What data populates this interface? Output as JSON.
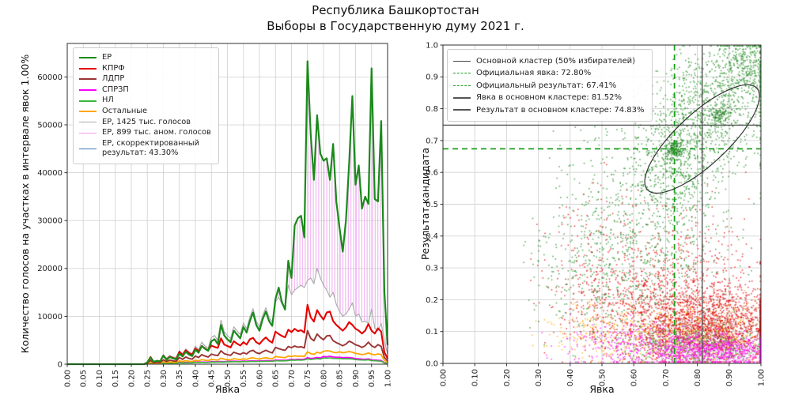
{
  "title": {
    "line1": "Республика Башкортостан",
    "line2": "Выборы в Государственную думу 2021 г."
  },
  "chart_data": [
    {
      "type": "line",
      "xlabel": "Явка",
      "ylabel": "Количество голосов на участках в интервале явок 1.00%",
      "xlim": [
        0.0,
        1.0
      ],
      "ylim": [
        0,
        67000
      ],
      "x_tick_step": 0.05,
      "y_tick_step": 10000,
      "y_tick_max": 60000,
      "grid": true,
      "x_start": 0.25,
      "x_step": 0.01,
      "note": "values below x_start are zero",
      "series": [
        {
          "name": "ЕР, 1425 тыс. голосов",
          "color": "#aaaaaa",
          "width": 1.1,
          "values": [
            300,
            900,
            600,
            800,
            700,
            2000,
            1200,
            1800,
            1500,
            1400,
            2800,
            2200,
            3200,
            2600,
            2200,
            3800,
            3000,
            4600,
            3800,
            3400,
            5600,
            6000,
            5000,
            9200,
            6800,
            6000,
            5400,
            7800,
            7000,
            6200,
            8600,
            7400,
            9800,
            11600,
            9000,
            7800,
            10200,
            11800,
            9800,
            8800,
            13000,
            14000,
            12600,
            11800,
            16500,
            14500,
            15500,
            16000,
            16500,
            16000,
            17500,
            18000,
            16800,
            20000,
            18000,
            16500,
            15500,
            14000,
            15000,
            12500,
            11000,
            10000,
            10500,
            11500,
            12800,
            10000,
            10500,
            8800,
            9000,
            8500,
            11500,
            7500,
            7000,
            8500,
            5000,
            2000
          ]
        },
        {
          "name": "СПРЗП",
          "color": "#ff00ff",
          "width": 1.8,
          "values": [
            60,
            120,
            90,
            110,
            100,
            250,
            180,
            230,
            210,
            200,
            380,
            300,
            360,
            330,
            310,
            480,
            400,
            460,
            430,
            410,
            560,
            500,
            540,
            560,
            520,
            600,
            570,
            620,
            600,
            580,
            660,
            620,
            680,
            700,
            650,
            700,
            680,
            730,
            710,
            690,
            850,
            800,
            830,
            810,
            880,
            1000,
            950,
            1020,
            980,
            1050,
            1350,
            1200,
            1250,
            1400,
            1300,
            1600,
            1550,
            1650,
            1500,
            1450,
            1450,
            1350,
            1400,
            1380,
            1300,
            1150,
            1100,
            1050,
            1020,
            1100,
            900,
            850,
            800,
            750,
            300,
            150
          ]
        },
        {
          "name": "НЛ",
          "color": "#3cb53c",
          "width": 1.6,
          "values": [
            50,
            100,
            80,
            90,
            85,
            200,
            150,
            190,
            170,
            160,
            320,
            260,
            300,
            280,
            270,
            400,
            340,
            390,
            360,
            350,
            470,
            420,
            450,
            470,
            440,
            510,
            480,
            520,
            500,
            490,
            560,
            530,
            570,
            590,
            550,
            600,
            580,
            620,
            600,
            590,
            720,
            680,
            700,
            690,
            750,
            850,
            810,
            870,
            840,
            890,
            1100,
            1000,
            1050,
            1150,
            1080,
            1300,
            1250,
            1320,
            1220,
            1180,
            1200,
            1120,
            1150,
            1130,
            1080,
            950,
            900,
            870,
            850,
            920,
            750,
            700,
            660,
            620,
            250,
            120
          ]
        },
        {
          "name": "Остальные",
          "color": "#ffa500",
          "width": 1.8,
          "values": [
            100,
            400,
            200,
            250,
            220,
            500,
            350,
            480,
            420,
            380,
            700,
            550,
            750,
            620,
            560,
            820,
            700,
            950,
            830,
            750,
            1000,
            920,
            870,
            1250,
            1050,
            950,
            900,
            1150,
            1050,
            980,
            1120,
            1020,
            1250,
            1330,
            1150,
            1080,
            1230,
            1350,
            1220,
            1130,
            1600,
            1500,
            1420,
            1370,
            1700,
            1600,
            1750,
            1650,
            1700,
            1600,
            2600,
            2200,
            2050,
            2500,
            2300,
            2700,
            2800,
            2750,
            2500,
            2400,
            2600,
            2400,
            2500,
            2650,
            2500,
            2250,
            2150,
            2000,
            2100,
            2350,
            2100,
            1950,
            2150,
            2000,
            800,
            400
          ]
        },
        {
          "name": "ЛДПР",
          "color": "#9a3434",
          "width": 1.9,
          "values": [
            200,
            800,
            300,
            400,
            350,
            900,
            550,
            850,
            700,
            600,
            1400,
            1000,
            1500,
            1200,
            1050,
            1700,
            1400,
            2000,
            1700,
            1500,
            2100,
            1900,
            1800,
            2800,
            2200,
            2000,
            1850,
            2500,
            2250,
            2050,
            2400,
            2150,
            2700,
            2900,
            2400,
            2200,
            2600,
            2900,
            2600,
            2350,
            3500,
            3250,
            3050,
            2900,
            3700,
            3450,
            3800,
            3550,
            3650,
            3400,
            7000,
            5400,
            4900,
            6300,
            5600,
            5100,
            5900,
            6000,
            4900,
            4500,
            4200,
            3850,
            4200,
            4800,
            4500,
            4050,
            3850,
            3500,
            3850,
            4600,
            3850,
            3500,
            4100,
            3700,
            1400,
            700
          ]
        },
        {
          "name": "КПРФ",
          "color": "#e60000",
          "width": 2.1,
          "values": [
            300,
            1500,
            500,
            700,
            600,
            1800,
            1000,
            1600,
            1300,
            1100,
            2600,
            1900,
            2900,
            2300,
            2000,
            3300,
            2700,
            3800,
            3300,
            2900,
            3900,
            3600,
            3400,
            5400,
            4100,
            3800,
            3500,
            4800,
            4300,
            3900,
            4600,
            4100,
            5200,
            5500,
            4600,
            4200,
            5000,
            5600,
            4900,
            4500,
            6800,
            6300,
            5900,
            5600,
            7200,
            6700,
            7400,
            6900,
            7100,
            6600,
            12400,
            9800,
            8900,
            11300,
            10200,
            9300,
            10800,
            11000,
            9000,
            8200,
            7600,
            7000,
            7700,
            8800,
            8200,
            7400,
            7000,
            6400,
            7000,
            8400,
            7000,
            6400,
            7500,
            6800,
            2500,
            1200
          ]
        },
        {
          "name": "ЕР",
          "color": "#1a8a1a",
          "width": 2.2,
          "values": [
            400,
            1400,
            500,
            700,
            600,
            1800,
            900,
            1500,
            1200,
            1000,
            2200,
            1600,
            2600,
            2000,
            1700,
            3000,
            2400,
            3800,
            3200,
            2800,
            4800,
            5200,
            4200,
            8200,
            6000,
            5200,
            4600,
            7000,
            6200,
            5400,
            7800,
            6600,
            9000,
            10800,
            8200,
            7000,
            9400,
            11000,
            9000,
            8000,
            13600,
            16000,
            13000,
            11400,
            21600,
            18000,
            29000,
            30500,
            31000,
            26500,
            63300,
            48000,
            38500,
            52000,
            44000,
            42500,
            43000,
            38500,
            46000,
            34000,
            28500,
            23500,
            30000,
            42000,
            56000,
            37500,
            41500,
            32500,
            35000,
            33500,
            61800,
            34500,
            34000,
            50800,
            15000,
            4000
          ]
        }
      ],
      "anomalous_area": {
        "label": "ЕР, 899 тыс. аном. голосов",
        "between": [
          "ЕР",
          "ЕР, 1425 тыс. голосов"
        ],
        "hatch_color": "#eeaaee"
      },
      "legend": [
        {
          "label": "ЕР",
          "color": "#1a8a1a",
          "width": 2.2,
          "style": "solid"
        },
        {
          "label": "КПРФ",
          "color": "#e60000",
          "width": 2.2,
          "style": "solid"
        },
        {
          "label": "ЛДПР",
          "color": "#9a3434",
          "width": 2.2,
          "style": "solid"
        },
        {
          "label": "СПРЗП",
          "color": "#ff00ff",
          "width": 2.2,
          "style": "solid"
        },
        {
          "label": "НЛ",
          "color": "#3cb53c",
          "width": 2,
          "style": "solid"
        },
        {
          "label": "Остальные",
          "color": "#ffa500",
          "width": 2,
          "style": "solid"
        },
        {
          "label": "ЕР, 1425 тыс. голосов",
          "color": "#aaaaaa",
          "width": 1.2,
          "style": "solid"
        },
        {
          "label": "ЕР, 899 тыс. аном. голосов",
          "color": "#ee9dee",
          "width": 1.2,
          "style": "solid"
        },
        {
          "label": "ЕР, скорректированный\nрезультат: 43.30%",
          "color": "#3d7ab5",
          "width": 1.6,
          "style": "solid"
        }
      ]
    },
    {
      "type": "scatter",
      "xlabel": "Явка",
      "ylabel": "Результат кандидата",
      "xlim": [
        0.0,
        1.0
      ],
      "ylim": [
        0.0,
        1.0
      ],
      "tick_step": 0.1,
      "grid": true,
      "legend": [
        {
          "label": "Основной кластер (50% избирателей)",
          "color": "#444444",
          "width": 1.4,
          "style": "solid"
        },
        {
          "label": "Официальная явка: 72.80%",
          "color": "#1e9e1e",
          "width": 1.8,
          "style": "dashed"
        },
        {
          "label": "Официальный результат: 67.41%",
          "color": "#1e9e1e",
          "width": 1.8,
          "style": "dashed"
        },
        {
          "label": "Явка в основном кластере: 81.52%",
          "color": "#555555",
          "width": 2,
          "style": "solid"
        },
        {
          "label": "Результат в основном кластере: 74.83%",
          "color": "#555555",
          "width": 2.4,
          "style": "solid"
        }
      ],
      "reference_lines": [
        {
          "name": "official-turnout-line",
          "orientation": "v",
          "value": 0.728,
          "style": "dashed",
          "color": "#1e9e1e",
          "width": 1.8
        },
        {
          "name": "official-result-line",
          "orientation": "h",
          "value": 0.6741,
          "style": "dashed",
          "color": "#1e9e1e",
          "width": 1.8
        },
        {
          "name": "cluster-turnout-line",
          "orientation": "v",
          "value": 0.8152,
          "style": "solid",
          "color": "#555555",
          "width": 1.4
        },
        {
          "name": "cluster-result-line",
          "orientation": "h",
          "value": 0.7483,
          "style": "solid",
          "color": "#555555",
          "width": 1.4
        }
      ],
      "cluster_ellipse": {
        "center": [
          0.815,
          0.705
        ],
        "rx": 0.235,
        "ry": 0.08,
        "angle_deg": -43,
        "color": "#333333",
        "width": 1.2
      },
      "point_style": {
        "size": 1.6,
        "alpha": 0.7
      },
      "seed": 42,
      "point_clusters": [
        {
          "party": "Остальные",
          "color": "#ffa500",
          "n": 650,
          "cx": 0.8,
          "cy": 0.085,
          "sx": 0.13,
          "sy": 0.05
        },
        {
          "party": "Остальные",
          "color": "#ffa500",
          "n": 220,
          "cx": 0.52,
          "cy": 0.1,
          "sx": 0.1,
          "sy": 0.05
        },
        {
          "party": "ЛДПР",
          "color": "#9a3434",
          "n": 650,
          "cx": 0.82,
          "cy": 0.09,
          "sx": 0.13,
          "sy": 0.05
        },
        {
          "party": "КПРФ",
          "color": "#e60000",
          "n": 1300,
          "cx": 0.85,
          "cy": 0.12,
          "sx": 0.12,
          "sy": 0.06
        },
        {
          "party": "КПРФ",
          "color": "#e60000",
          "n": 600,
          "cx": 0.62,
          "cy": 0.17,
          "sx": 0.13,
          "sy": 0.08
        },
        {
          "party": "КПРФ",
          "color": "#e60000",
          "n": 350,
          "cx": 0.78,
          "cy": 0.3,
          "sx": 0.12,
          "sy": 0.09
        },
        {
          "party": "КПРФ",
          "color": "#e60000",
          "n": 150,
          "cx": 0.5,
          "cy": 0.35,
          "sx": 0.1,
          "sy": 0.12
        },
        {
          "party": "НЛ",
          "color": "#3cb53c",
          "n": 450,
          "cx": 0.82,
          "cy": 0.05,
          "sx": 0.12,
          "sy": 0.03
        },
        {
          "party": "СПРЗП",
          "color": "#ff00ff",
          "n": 900,
          "cx": 0.85,
          "cy": 0.04,
          "sx": 0.12,
          "sy": 0.028
        },
        {
          "party": "СПРЗП",
          "color": "#ff00ff",
          "n": 250,
          "cx": 0.6,
          "cy": 0.06,
          "sx": 0.12,
          "sy": 0.04
        },
        {
          "party": "ЕР",
          "color": "#1f8b1f",
          "n": 350,
          "cx": 0.5,
          "cy": 0.28,
          "sx": 0.12,
          "sy": 0.12
        },
        {
          "party": "ЕР",
          "color": "#1f8b1f",
          "n": 600,
          "cx": 0.62,
          "cy": 0.45,
          "sx": 0.14,
          "sy": 0.16
        },
        {
          "party": "ЕР",
          "color": "#1f8b1f",
          "n": 450,
          "cx": 0.73,
          "cy": 0.62,
          "sx": 0.07,
          "sy": 0.09
        },
        {
          "party": "ЕР",
          "color": "#1f8b1f",
          "n": 800,
          "cx": 0.84,
          "cy": 0.8,
          "sx": 0.09,
          "sy": 0.09
        },
        {
          "party": "ЕР",
          "color": "#1f8b1f",
          "n": 380,
          "cx": 0.95,
          "cy": 0.93,
          "sx": 0.05,
          "sy": 0.05
        },
        {
          "party": "ЕР",
          "color": "#157815",
          "n": 130,
          "cx": 0.728,
          "cy": 0.672,
          "sx": 0.012,
          "sy": 0.014
        },
        {
          "party": "ЕР",
          "color": "#157815",
          "n": 70,
          "cx": 0.87,
          "cy": 0.78,
          "sx": 0.015,
          "sy": 0.015
        }
      ]
    }
  ]
}
